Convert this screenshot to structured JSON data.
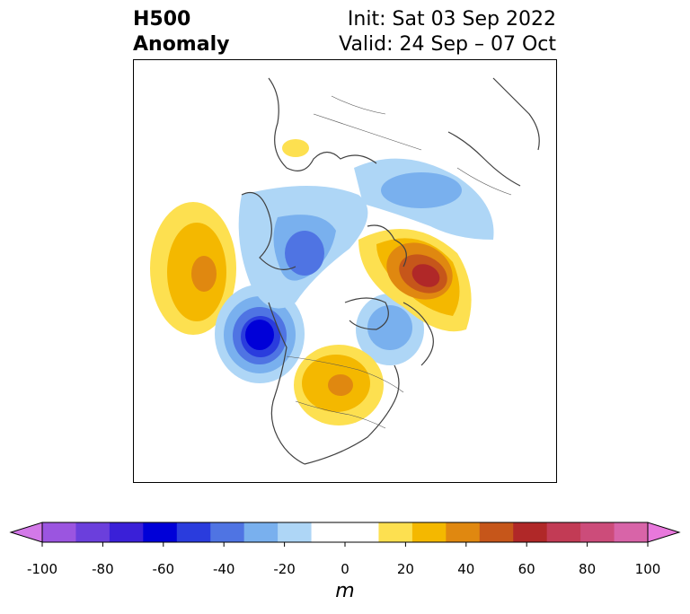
{
  "header": {
    "variable": "H500",
    "field": "Anomaly",
    "init": "Init: Sat 03 Sep 2022",
    "valid": "Valid: 24 Sep – 07 Oct"
  },
  "map": {
    "projection": "polar-stereographic",
    "region": "Northern Hemisphere",
    "anomaly_centers": [
      {
        "region": "North Pacific",
        "sign": "positive",
        "peak_m": 40
      },
      {
        "region": "Gulf of Alaska / Pacific Northwest",
        "sign": "negative",
        "peak_m": -60
      },
      {
        "region": "Central Canada / Great Lakes",
        "sign": "positive",
        "peak_m": 40
      },
      {
        "region": "Eastern Siberia / Arctic",
        "sign": "negative",
        "peak_m": -40
      },
      {
        "region": "Northern Europe / Scandinavia",
        "sign": "positive",
        "peak_m": 60
      },
      {
        "region": "Eurasia / Siberia",
        "sign": "negative",
        "peak_m": -30
      },
      {
        "region": "Greenland / Labrador Sea",
        "sign": "negative",
        "peak_m": -30
      },
      {
        "region": "North Africa",
        "sign": "positive",
        "peak_m": 10
      }
    ]
  },
  "colorbar": {
    "unit": "m",
    "ticks": [
      "-100",
      "-80",
      "-60",
      "-40",
      "-20",
      "0",
      "20",
      "40",
      "60",
      "80",
      "100"
    ],
    "colors": [
      "#d379e8",
      "#9b55e0",
      "#6b3fdc",
      "#3a20d8",
      "#0000d8",
      "#2a3cdd",
      "#4f74e3",
      "#79b0ee",
      "#aed6f6",
      "#ffffff",
      "#ffffff",
      "#fde050",
      "#f4b800",
      "#e08810",
      "#c6561a",
      "#b02828",
      "#c23b55",
      "#cc4c7a",
      "#d864a8",
      "#e878dc"
    ]
  }
}
